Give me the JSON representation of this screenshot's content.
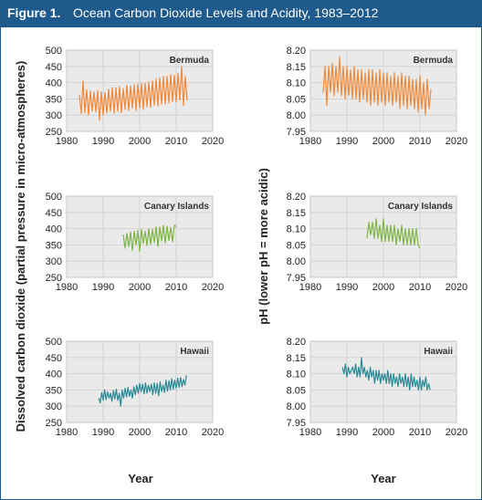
{
  "figure": {
    "label": "Figure 1.",
    "title": "Ocean Carbon Dioxide Levels and Acidity, 1983–2012"
  },
  "left_ylabel": "Dissolved carbon dioxide (partial pressure in micro-atmospheres)",
  "right_ylabel": "pH (lower pH = more acidic)",
  "xlabel": "Year",
  "colors": {
    "header": "#1e5a8c",
    "bermuda": "#f08a3a",
    "canary": "#7fb548",
    "hawaii": "#2a8a96",
    "grid": "#cfcfcf",
    "plot_bg": "#eaeaea"
  },
  "chart_data": [
    {
      "type": "line",
      "location": "Bermuda",
      "variable": "co2",
      "xlim": [
        1980,
        2020
      ],
      "ylim": [
        250,
        500
      ],
      "xticks": [
        1980,
        1990,
        2000,
        2010,
        2020
      ],
      "yticks": [
        250,
        300,
        350,
        400,
        450,
        500
      ],
      "x": [
        1983.5,
        1984.0,
        1984.5,
        1985.0,
        1985.5,
        1986.0,
        1986.5,
        1987.0,
        1987.5,
        1988.0,
        1988.5,
        1989.0,
        1989.5,
        1990.0,
        1990.5,
        1991.0,
        1991.5,
        1992.0,
        1992.5,
        1993.0,
        1993.5,
        1994.0,
        1994.5,
        1995.0,
        1995.5,
        1996.0,
        1996.5,
        1997.0,
        1997.5,
        1998.0,
        1998.5,
        1999.0,
        1999.5,
        2000.0,
        2000.5,
        2001.0,
        2001.5,
        2002.0,
        2002.5,
        2003.0,
        2003.5,
        2004.0,
        2004.5,
        2005.0,
        2005.5,
        2006.0,
        2006.5,
        2007.0,
        2007.5,
        2008.0,
        2008.5,
        2009.0,
        2009.5,
        2010.0,
        2010.5,
        2011.0,
        2011.5,
        2012.0,
        2012.5,
        2013.0
      ],
      "y": [
        362,
        305,
        405,
        308,
        378,
        300,
        374,
        312,
        372,
        310,
        376,
        285,
        372,
        300,
        370,
        306,
        380,
        312,
        385,
        306,
        384,
        312,
        388,
        308,
        382,
        318,
        392,
        314,
        390,
        322,
        394,
        315,
        396,
        322,
        398,
        318,
        398,
        326,
        402,
        324,
        406,
        330,
        412,
        328,
        415,
        335,
        420,
        334,
        420,
        338,
        425,
        342,
        422,
        340,
        428,
        347,
        450,
        330,
        420,
        345
      ]
    },
    {
      "type": "line",
      "location": "Bermuda",
      "variable": "ph",
      "xlim": [
        1980,
        2020
      ],
      "ylim": [
        7.95,
        8.2
      ],
      "xticks": [
        1980,
        1990,
        2000,
        2010,
        2020
      ],
      "yticks": [
        7.95,
        8.0,
        8.05,
        8.1,
        8.15,
        8.2
      ],
      "x": [
        1983.5,
        1984.0,
        1984.5,
        1985.0,
        1985.5,
        1986.0,
        1986.5,
        1987.0,
        1987.5,
        1988.0,
        1988.5,
        1989.0,
        1989.5,
        1990.0,
        1990.5,
        1991.0,
        1991.5,
        1992.0,
        1992.5,
        1993.0,
        1993.5,
        1994.0,
        1994.5,
        1995.0,
        1995.5,
        1996.0,
        1996.5,
        1997.0,
        1997.5,
        1998.0,
        1998.5,
        1999.0,
        1999.5,
        2000.0,
        2000.5,
        2001.0,
        2001.5,
        2002.0,
        2002.5,
        2003.0,
        2003.5,
        2004.0,
        2004.5,
        2005.0,
        2005.5,
        2006.0,
        2006.5,
        2007.0,
        2007.5,
        2008.0,
        2008.5,
        2009.0,
        2009.5,
        2010.0,
        2010.5,
        2011.0,
        2011.5,
        2012.0,
        2012.5,
        2013.0
      ],
      "y": [
        8.07,
        8.15,
        8.03,
        8.15,
        8.07,
        8.16,
        8.06,
        8.15,
        8.07,
        8.18,
        8.06,
        8.15,
        8.05,
        8.15,
        8.06,
        8.14,
        8.05,
        8.15,
        8.05,
        8.14,
        8.04,
        8.14,
        8.05,
        8.13,
        8.04,
        8.14,
        8.03,
        8.14,
        8.04,
        8.13,
        8.03,
        8.14,
        8.04,
        8.13,
        8.03,
        8.13,
        8.04,
        8.12,
        8.03,
        8.13,
        8.04,
        8.12,
        8.02,
        8.13,
        8.03,
        8.12,
        8.02,
        8.12,
        8.03,
        8.11,
        8.02,
        8.11,
        8.01,
        8.12,
        8.02,
        8.1,
        8.0,
        8.11,
        8.02,
        8.08
      ]
    },
    {
      "type": "line",
      "location": "Canary Islands",
      "variable": "co2",
      "xlim": [
        1980,
        2020
      ],
      "ylim": [
        250,
        500
      ],
      "xticks": [
        1980,
        1990,
        2000,
        2010,
        2020
      ],
      "yticks": [
        250,
        300,
        350,
        400,
        450,
        500
      ],
      "x": [
        1995.5,
        1996.0,
        1996.5,
        1997.0,
        1997.5,
        1998.0,
        1998.5,
        1999.0,
        1999.5,
        2000.0,
        2000.5,
        2001.0,
        2001.5,
        2002.0,
        2002.5,
        2003.0,
        2003.5,
        2004.0,
        2004.5,
        2005.0,
        2005.5,
        2006.0,
        2006.5,
        2007.0,
        2007.5,
        2008.0,
        2008.5,
        2009.0,
        2009.5,
        2010.0
      ],
      "y": [
        382,
        340,
        385,
        345,
        390,
        332,
        392,
        350,
        395,
        330,
        398,
        355,
        392,
        348,
        400,
        352,
        398,
        358,
        405,
        345,
        405,
        362,
        410,
        356,
        408,
        364,
        404,
        360,
        410,
        406
      ]
    },
    {
      "type": "line",
      "location": "Canary Islands",
      "variable": "ph",
      "xlim": [
        1980,
        2020
      ],
      "ylim": [
        7.95,
        8.2
      ],
      "xticks": [
        1980,
        1990,
        2000,
        2010,
        2020
      ],
      "yticks": [
        7.95,
        8.0,
        8.05,
        8.1,
        8.15,
        8.2
      ],
      "x": [
        1995.5,
        1996.0,
        1996.5,
        1997.0,
        1997.5,
        1998.0,
        1998.5,
        1999.0,
        1999.5,
        2000.0,
        2000.5,
        2001.0,
        2001.5,
        2002.0,
        2002.5,
        2003.0,
        2003.5,
        2004.0,
        2004.5,
        2005.0,
        2005.5,
        2006.0,
        2006.5,
        2007.0,
        2007.5,
        2008.0,
        2008.5,
        2009.0,
        2009.5,
        2010.0
      ],
      "y": [
        8.07,
        8.12,
        8.08,
        8.12,
        8.07,
        8.13,
        8.07,
        8.11,
        8.06,
        8.13,
        8.06,
        8.11,
        8.06,
        8.11,
        8.06,
        8.11,
        8.05,
        8.1,
        8.06,
        8.11,
        8.05,
        8.1,
        8.05,
        8.1,
        8.05,
        8.1,
        8.05,
        8.1,
        8.05,
        8.04
      ]
    },
    {
      "type": "line",
      "location": "Hawaii",
      "variable": "co2",
      "xlim": [
        1980,
        2020
      ],
      "ylim": [
        250,
        500
      ],
      "xticks": [
        1980,
        1990,
        2000,
        2010,
        2020
      ],
      "yticks": [
        250,
        300,
        350,
        400,
        450,
        500
      ],
      "x": [
        1988.8,
        1989.2,
        1989.6,
        1990.0,
        1990.4,
        1990.8,
        1991.2,
        1991.6,
        1992.0,
        1992.4,
        1992.8,
        1993.2,
        1993.6,
        1994.0,
        1994.4,
        1994.8,
        1995.2,
        1995.6,
        1996.0,
        1996.4,
        1996.8,
        1997.2,
        1997.6,
        1998.0,
        1998.4,
        1998.8,
        1999.2,
        1999.6,
        2000.0,
        2000.4,
        2000.8,
        2001.2,
        2001.6,
        2002.0,
        2002.4,
        2002.8,
        2003.2,
        2003.6,
        2004.0,
        2004.4,
        2004.8,
        2005.2,
        2005.6,
        2006.0,
        2006.4,
        2006.8,
        2007.2,
        2007.6,
        2008.0,
        2008.4,
        2008.8,
        2009.2,
        2009.6,
        2010.0,
        2010.4,
        2010.8,
        2011.2,
        2011.6,
        2012.0,
        2012.4,
        2012.8
      ],
      "y": [
        325,
        310,
        342,
        318,
        350,
        320,
        345,
        325,
        340,
        315,
        348,
        322,
        352,
        318,
        340,
        300,
        350,
        325,
        355,
        328,
        358,
        330,
        350,
        325,
        360,
        335,
        365,
        340,
        370,
        345,
        368,
        338,
        372,
        340,
        365,
        345,
        368,
        335,
        372,
        340,
        370,
        332,
        375,
        345,
        365,
        342,
        380,
        346,
        378,
        350,
        385,
        352,
        380,
        355,
        386,
        358,
        388,
        360,
        382,
        365,
        395
      ]
    },
    {
      "type": "line",
      "location": "Hawaii",
      "variable": "ph",
      "xlim": [
        1980,
        2020
      ],
      "ylim": [
        7.95,
        8.2
      ],
      "xticks": [
        1980,
        1990,
        2000,
        2010,
        2020
      ],
      "yticks": [
        7.95,
        8.0,
        8.05,
        8.1,
        8.15,
        8.2
      ],
      "x": [
        1988.8,
        1989.2,
        1989.6,
        1990.0,
        1990.4,
        1990.8,
        1991.2,
        1991.6,
        1992.0,
        1992.4,
        1992.8,
        1993.2,
        1993.6,
        1994.0,
        1994.4,
        1994.8,
        1995.2,
        1995.6,
        1996.0,
        1996.4,
        1996.8,
        1997.2,
        1997.6,
        1998.0,
        1998.4,
        1998.8,
        1999.2,
        1999.6,
        2000.0,
        2000.4,
        2000.8,
        2001.2,
        2001.6,
        2002.0,
        2002.4,
        2002.8,
        2003.2,
        2003.6,
        2004.0,
        2004.4,
        2004.8,
        2005.2,
        2005.6,
        2006.0,
        2006.4,
        2006.8,
        2007.2,
        2007.6,
        2008.0,
        2008.4,
        2008.8,
        2009.2,
        2009.6,
        2010.0,
        2010.4,
        2010.8,
        2011.2,
        2011.6,
        2012.0,
        2012.4,
        2012.8
      ],
      "y": [
        8.12,
        8.1,
        8.13,
        8.09,
        8.12,
        8.1,
        8.11,
        8.12,
        8.1,
        8.13,
        8.09,
        8.12,
        8.09,
        8.15,
        8.1,
        8.12,
        8.09,
        8.11,
        8.08,
        8.12,
        8.09,
        8.11,
        8.07,
        8.11,
        8.08,
        8.11,
        8.07,
        8.1,
        8.08,
        8.1,
        8.07,
        8.11,
        8.07,
        8.1,
        8.06,
        8.1,
        8.07,
        8.09,
        8.06,
        8.1,
        8.07,
        8.09,
        8.06,
        8.1,
        8.06,
        8.09,
        8.05,
        8.1,
        8.06,
        8.09,
        8.06,
        8.08,
        8.05,
        8.09,
        8.05,
        8.08,
        8.06,
        8.09,
        8.05,
        8.07,
        8.05
      ]
    }
  ]
}
